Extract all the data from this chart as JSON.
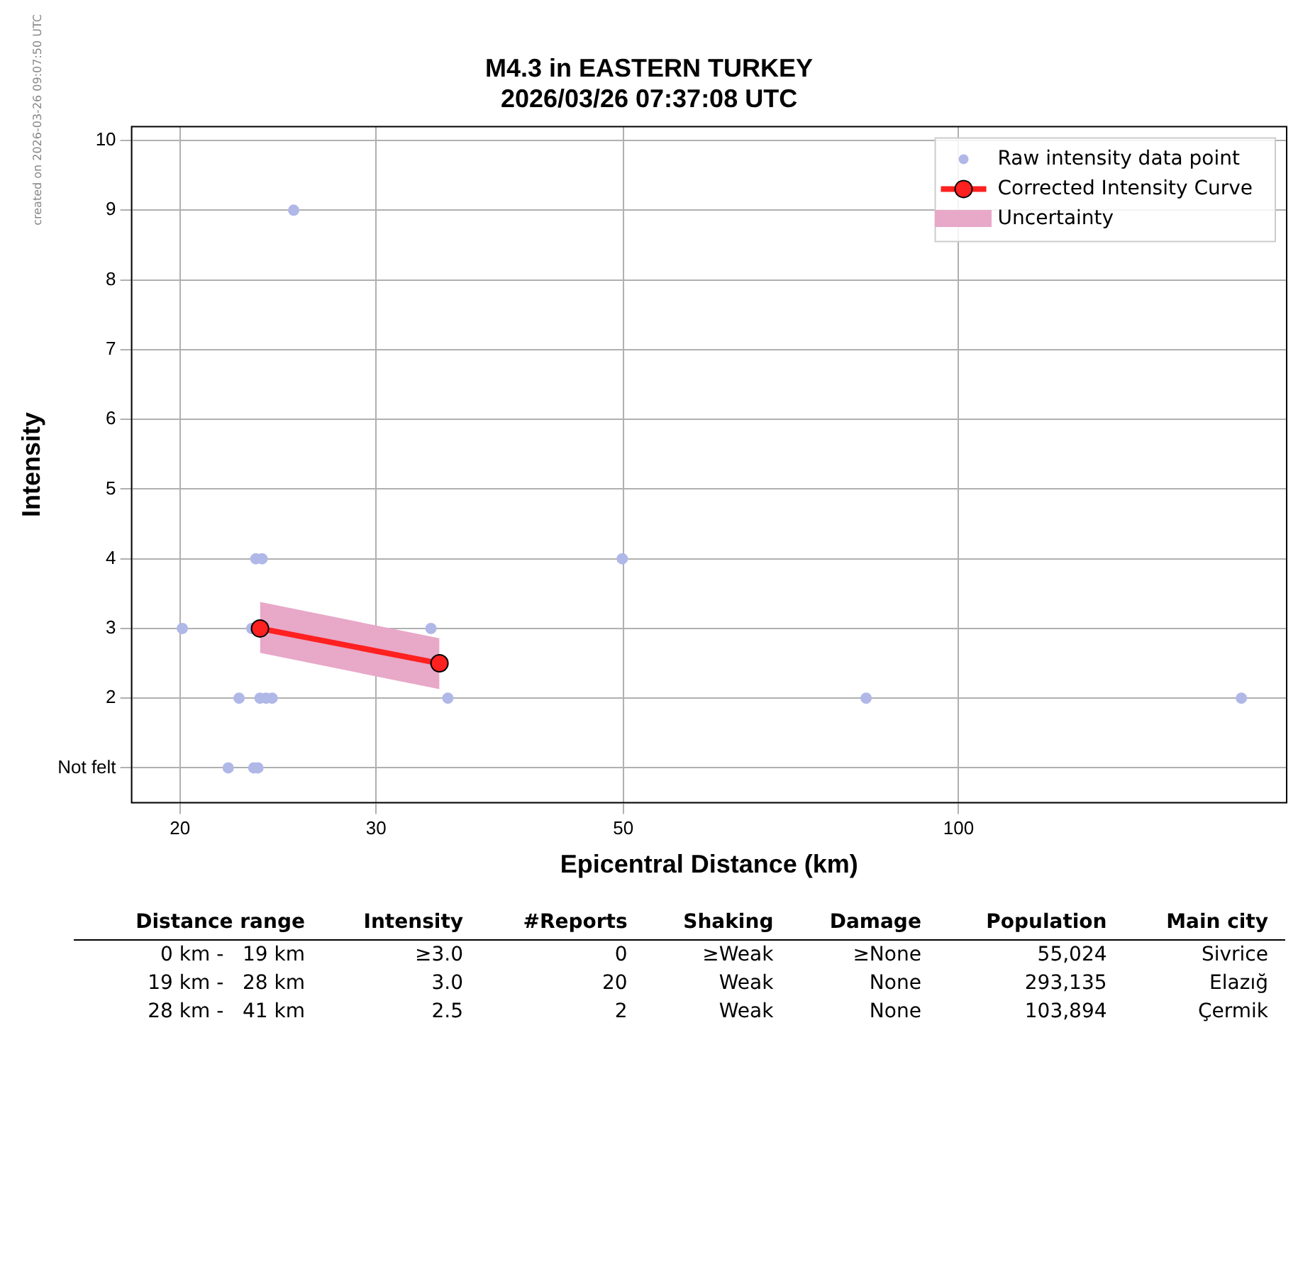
{
  "chart_data": {
    "type": "scatter",
    "title": "M4.3 in EASTERN TURKEY",
    "subtitle": "2026/03/26 07:37:08 UTC",
    "xlabel": "Epicentral Distance (km)",
    "ylabel": "Intensity",
    "log": "x",
    "xlim": [
      18.1,
      197
    ],
    "xticks": [
      20,
      30,
      50,
      100
    ],
    "ylim": [
      0.5,
      10.2
    ],
    "yticks": [
      {
        "value": 1,
        "label": "Not felt"
      },
      2,
      3,
      4,
      5,
      6,
      7,
      8,
      9,
      10
    ],
    "grid": true,
    "legend": "top right",
    "marker": "circle",
    "series": [
      {
        "name": "Raw intensity data point",
        "color": "#b0b8e8",
        "x": [
          20.1,
          25.3,
          23.4,
          23.7,
          23.2,
          22.6,
          23.6,
          23.9,
          24.2,
          22.1,
          23.3,
          23.5,
          33.6,
          34.8,
          49.9,
          82.6,
          179.4
        ],
        "values": [
          3,
          9,
          4,
          4,
          3,
          2,
          2,
          2,
          2,
          1,
          1,
          1,
          3,
          2,
          4,
          2,
          2
        ]
      },
      {
        "name": "Corrected Intensity Curve",
        "type": "line",
        "color": "#ff2020",
        "x": [
          23.6,
          34.2
        ],
        "values": [
          3.0,
          2.5
        ],
        "lower": [
          2.65,
          2.13
        ],
        "upper": [
          3.38,
          2.86
        ]
      }
    ],
    "annotations": [
      "created on 2026-03-26 09:07:50 UTC",
      "Uncertainty",
      "Distance range",
      "Intensity",
      "#Reports",
      "Shaking",
      "Damage",
      "Population",
      "Main city",
      "0 km -   19 km",
      "≥3.0",
      "0",
      "≥Weak",
      "≥None",
      "55,024",
      "Sivrice",
      "19 km -   28 km",
      "3.0",
      "20",
      "Weak",
      "None",
      "293,135",
      "Elazığ",
      "28 km -   41 km",
      "2.5",
      "2",
      "Weak",
      "None",
      "103,894",
      "Çermik"
    ]
  }
}
